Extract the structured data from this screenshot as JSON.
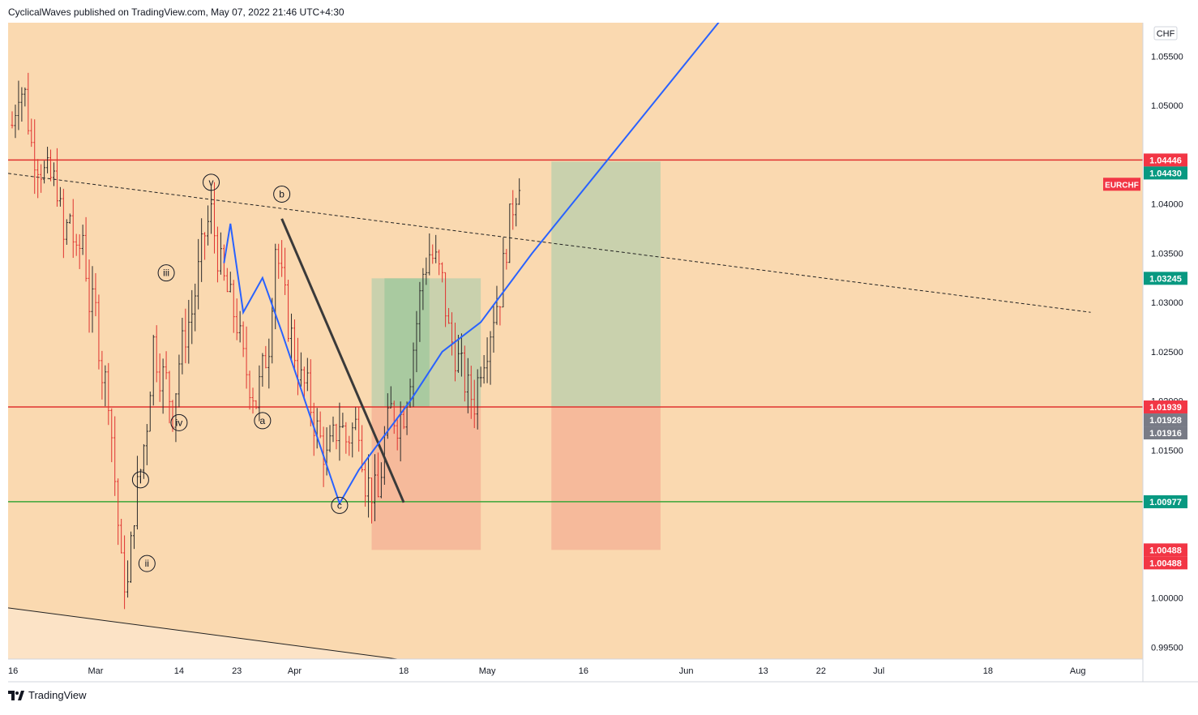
{
  "header": {
    "attribution": "CyclicalWaves published on TradingView.com, May 07, 2022 21:46 UTC+4:30"
  },
  "footer": {
    "brand": "TradingView"
  },
  "colors": {
    "background": "#fad9b0",
    "candle_up": "#2b2b2b",
    "candle_down": "#e0322f",
    "resistance": "#e0322f",
    "support": "#3aa63a",
    "wave_path": "#2962ff",
    "target_zone": "#c6d1ad",
    "stop_zone": "#f5b89a",
    "label_red": "#f23645",
    "label_green": "#089981",
    "label_gray": "#787b86"
  },
  "chart_data": {
    "type": "candlestick",
    "symbol": "EURCHF",
    "currency": "CHF",
    "ylim": [
      0.9938,
      1.0584
    ],
    "y_ticks": [
      "1.05500",
      "1.05000",
      "1.04000",
      "1.03500",
      "1.03000",
      "1.02500",
      "1.02000",
      "1.01500",
      "1.00000",
      "0.99500"
    ],
    "x_ticks": [
      {
        "label": "16",
        "day": 0
      },
      {
        "label": "Mar",
        "day": 13
      },
      {
        "label": "14",
        "day": 26
      },
      {
        "label": "23",
        "day": 35
      },
      {
        "label": "Apr",
        "day": 44
      },
      {
        "label": "18",
        "day": 61
      },
      {
        "label": "May",
        "day": 74
      },
      {
        "label": "16",
        "day": 89
      },
      {
        "label": "Jun",
        "day": 105
      },
      {
        "label": "13",
        "day": 117
      },
      {
        "label": "22",
        "day": 126
      },
      {
        "label": "Jul",
        "day": 135
      },
      {
        "label": "18",
        "day": 152
      },
      {
        "label": "Aug",
        "day": 166
      }
    ],
    "close_path": [
      [
        0,
        1.048
      ],
      [
        1,
        1.052
      ],
      [
        2,
        1.051
      ],
      [
        3,
        1.046
      ],
      [
        5,
        1.043
      ],
      [
        7,
        1.042
      ],
      [
        8,
        1.036
      ],
      [
        9,
        1.039
      ],
      [
        10,
        1.034
      ],
      [
        11,
        1.037
      ],
      [
        12,
        1.03
      ],
      [
        13,
        1.029
      ],
      [
        14,
        1.023
      ],
      [
        15,
        1.021
      ],
      [
        16,
        1.012
      ],
      [
        17,
        1.003
      ],
      [
        18,
        1.001
      ],
      [
        19,
        1.009
      ],
      [
        20,
        1.013
      ],
      [
        21,
        1.018
      ],
      [
        22,
        1.026
      ],
      [
        23,
        1.023
      ],
      [
        24,
        1.022
      ],
      [
        25,
        1.019
      ],
      [
        26,
        1.024
      ],
      [
        27,
        1.027
      ],
      [
        28,
        1.029
      ],
      [
        29,
        1.033
      ],
      [
        30,
        1.037
      ],
      [
        31,
        1.039
      ],
      [
        32,
        1.035
      ],
      [
        33,
        1.032
      ],
      [
        34,
        1.03
      ],
      [
        35,
        1.028
      ],
      [
        36,
        1.024
      ],
      [
        37,
        1.022
      ],
      [
        38,
        1.02
      ],
      [
        39,
        1.023
      ],
      [
        40,
        1.026
      ],
      [
        41,
        1.036
      ],
      [
        42,
        1.032
      ],
      [
        43,
        1.028
      ],
      [
        44,
        1.025
      ],
      [
        45,
        1.022
      ],
      [
        46,
        1.021
      ],
      [
        47,
        1.018
      ],
      [
        48,
        1.016
      ],
      [
        49,
        1.014
      ],
      [
        50,
        1.016
      ],
      [
        51,
        1.018
      ],
      [
        52,
        1.016
      ],
      [
        53,
        1.017
      ],
      [
        54,
        1.018
      ],
      [
        55,
        1.012
      ],
      [
        56,
        1.011
      ],
      [
        57,
        1.01
      ],
      [
        58,
        1.016
      ],
      [
        59,
        1.019
      ],
      [
        60,
        1.018
      ],
      [
        61,
        1.019
      ],
      [
        62,
        1.023
      ],
      [
        63,
        1.028
      ],
      [
        64,
        1.033
      ],
      [
        65,
        1.035
      ],
      [
        66,
        1.034
      ],
      [
        67,
        1.032
      ],
      [
        68,
        1.027
      ],
      [
        69,
        1.025
      ],
      [
        70,
        1.023
      ],
      [
        71,
        1.021
      ],
      [
        72,
        1.02
      ],
      [
        73,
        1.024
      ],
      [
        74,
        1.026
      ],
      [
        75,
        1.029
      ],
      [
        76,
        1.031
      ],
      [
        77,
        1.036
      ],
      [
        78,
        1.04
      ],
      [
        79,
        1.043
      ]
    ],
    "horizontal_levels": [
      {
        "name": "resistance",
        "value": 1.04446
      },
      {
        "name": "entry",
        "value": 1.01939
      },
      {
        "name": "support",
        "value": 1.00977
      }
    ],
    "price_labels": [
      {
        "value": "1.04446",
        "price": 1.04446,
        "color": "red"
      },
      {
        "value": "1.04430",
        "price": 1.0443,
        "color": "green"
      },
      {
        "value": "1.03245",
        "price": 1.03245,
        "color": "green"
      },
      {
        "value": "1.01939",
        "price": 1.01939,
        "color": "red"
      },
      {
        "value": "1.01928",
        "price": 1.01928,
        "color": "gray"
      },
      {
        "value": "1.01916",
        "price": 1.01916,
        "color": "gray"
      },
      {
        "value": "1.00977",
        "price": 1.00977,
        "color": "green"
      },
      {
        "value": "1.00488",
        "price": 1.00488,
        "color": "red"
      },
      {
        "value": "1.00488",
        "price": 1.00488,
        "color": "red"
      }
    ],
    "symbol_tag": {
      "text": "EURCHF",
      "price": 1.042
    },
    "wave_labels": [
      {
        "text": "v",
        "day": 31,
        "price": 1.0422
      },
      {
        "text": "b",
        "day": 42,
        "price": 1.041
      },
      {
        "text": "iii",
        "day": 24,
        "price": 1.033
      },
      {
        "text": "iv",
        "day": 26,
        "price": 1.0178
      },
      {
        "text": "a",
        "day": 39,
        "price": 1.018
      },
      {
        "text": "i",
        "day": 20,
        "price": 1.012
      },
      {
        "text": "ii",
        "day": 21,
        "price": 1.0035
      },
      {
        "text": "c",
        "day": 51,
        "price": 1.0094
      }
    ],
    "wave_path": [
      [
        33,
        1.034
      ],
      [
        34,
        1.038
      ],
      [
        36,
        1.029
      ],
      [
        39,
        1.0325
      ],
      [
        42,
        1.027
      ],
      [
        51,
        1.0096
      ],
      [
        54,
        1.013
      ],
      [
        62,
        1.02
      ],
      [
        67,
        1.025
      ],
      [
        73,
        1.028
      ],
      [
        81,
        1.035
      ],
      [
        112,
        1.06
      ]
    ],
    "black_trendline": [
      [
        42,
        1.0385
      ],
      [
        61,
        1.0097
      ]
    ],
    "dashed_trendline": [
      [
        0,
        1.0431
      ],
      [
        168,
        1.029
      ]
    ],
    "wedge_trendline": [
      [
        0,
        0.999
      ],
      [
        60,
        0.9938
      ]
    ],
    "first_projection": {
      "x0": 56,
      "x1": 73,
      "target": 1.03245,
      "entry": 1.01939,
      "stop": 1.00488,
      "active_start": 58,
      "active_end": 65
    },
    "second_projection": {
      "x0": 84,
      "x1": 101,
      "target": 1.0443,
      "entry": 1.01939,
      "stop": 1.00488
    }
  }
}
